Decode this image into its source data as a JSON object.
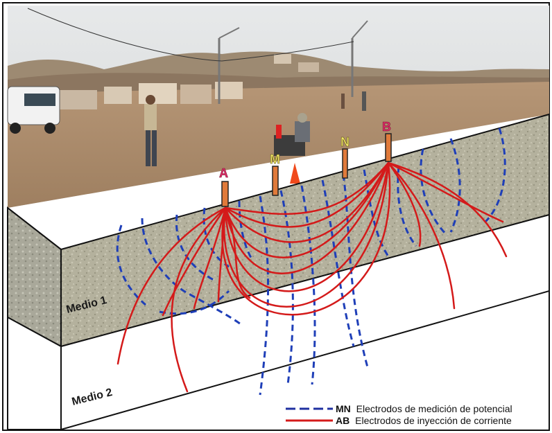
{
  "colors": {
    "potential_lines": "#1f3fb8",
    "current_lines": "#d41a1a",
    "label_A": "#e0306a",
    "label_B": "#e0306a",
    "label_M": "#f3e86a",
    "label_N": "#f3e86a",
    "sky": "#dfe2e3",
    "ground": "#a98a6a",
    "medio1": "#b3b09c",
    "medio2": "#ffffff"
  },
  "electrodes": {
    "A": "A",
    "M": "M",
    "N": "N",
    "B": "B"
  },
  "layers": {
    "medio1": "Medio 1",
    "medio2": "Medio 2"
  },
  "legend": {
    "mn_code": "MN",
    "mn_text": "Electrodos de medición de potencial",
    "ab_code": "AB",
    "ab_text": "Electrodos de inyección de corriente"
  }
}
